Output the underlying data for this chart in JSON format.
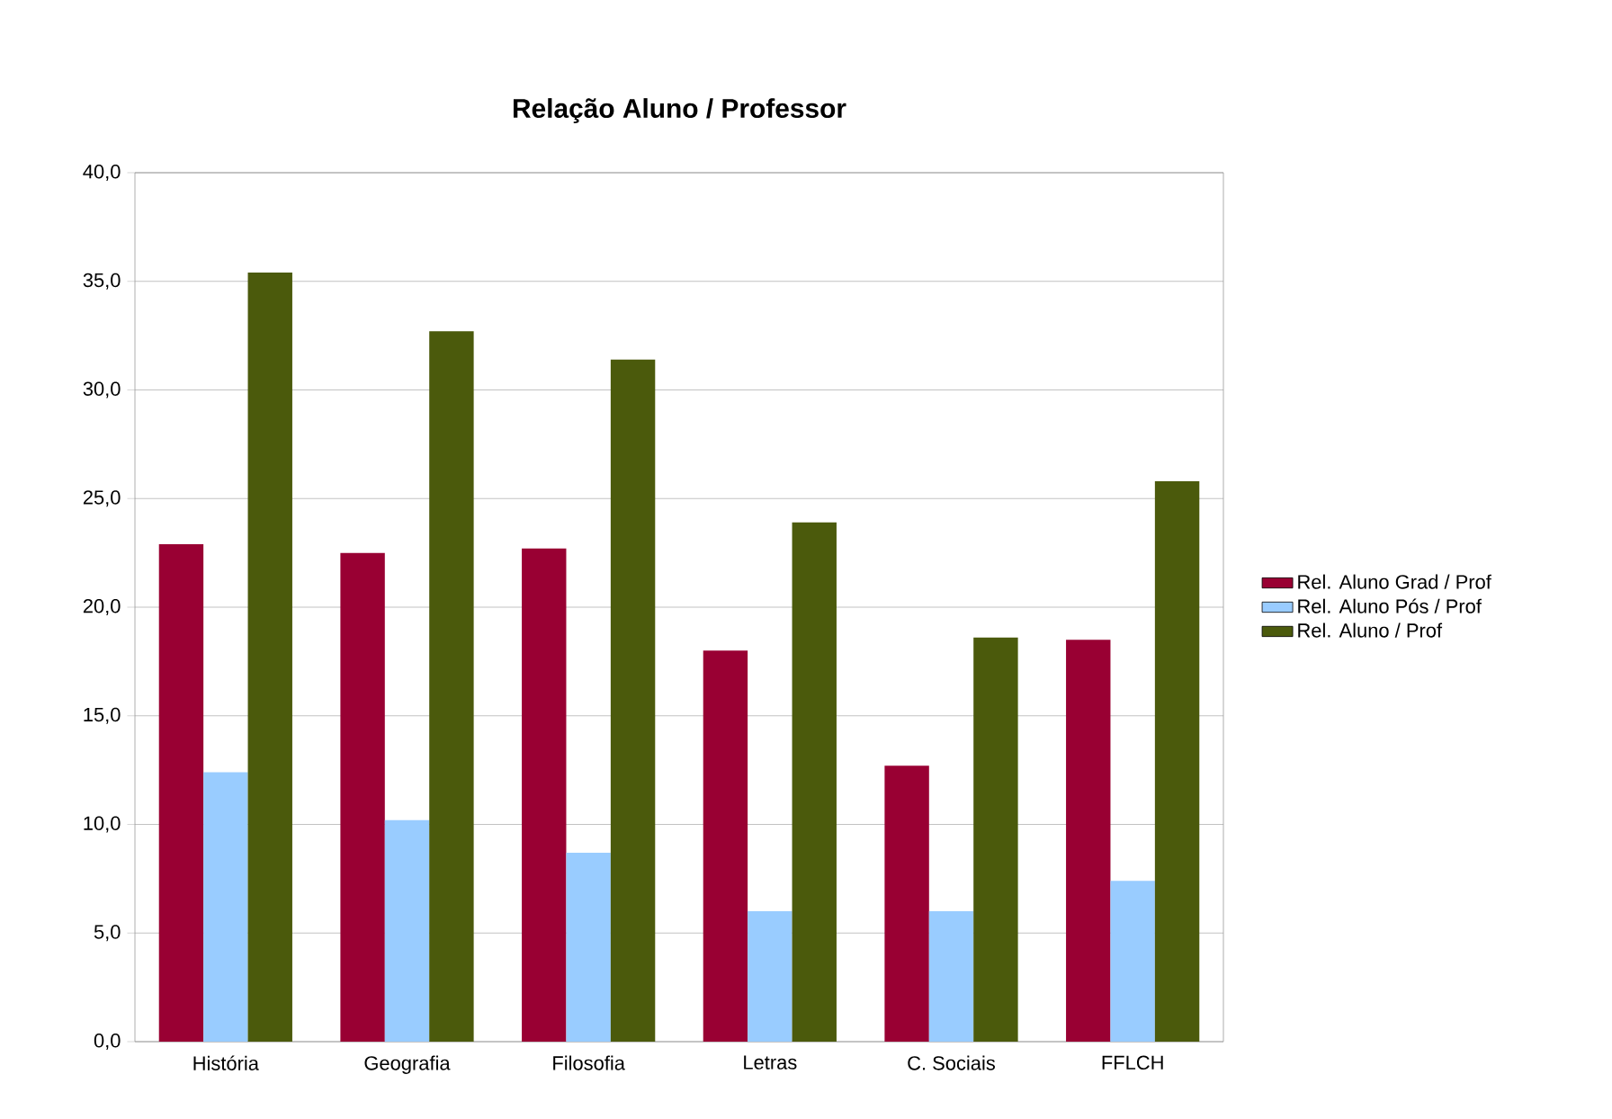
{
  "chart_data": {
    "type": "bar",
    "title": "Relação Aluno / Professor",
    "categories": [
      "História",
      "Geografia",
      "Filosofia",
      "Letras",
      "C. Sociais",
      "FFLCH"
    ],
    "series": [
      {
        "name": "Rel. Aluno Grad / Prof",
        "color": "#990033",
        "values": [
          22.9,
          22.5,
          22.7,
          18.0,
          12.7,
          18.5
        ]
      },
      {
        "name": "Rel. Aluno Pós / Prof",
        "color": "#99ccff",
        "values": [
          12.4,
          10.2,
          8.7,
          6.0,
          6.0,
          7.4
        ]
      },
      {
        "name": "Rel. Aluno / Prof",
        "color": "#4b5a0c",
        "values": [
          35.4,
          32.7,
          31.4,
          23.9,
          18.6,
          25.8
        ]
      }
    ],
    "ylim": [
      0,
      40
    ],
    "yticks": [
      {
        "value": 0,
        "label": "0,0"
      },
      {
        "value": 5,
        "label": "5,0"
      },
      {
        "value": 10,
        "label": "10,0"
      },
      {
        "value": 15,
        "label": "15,0"
      },
      {
        "value": 20,
        "label": "20,0"
      },
      {
        "value": 25,
        "label": "25,0"
      },
      {
        "value": 30,
        "label": "30,0"
      },
      {
        "value": 35,
        "label": "35,0"
      },
      {
        "value": 40,
        "label": "40,0"
      }
    ],
    "grid": "y",
    "legend": "right"
  }
}
